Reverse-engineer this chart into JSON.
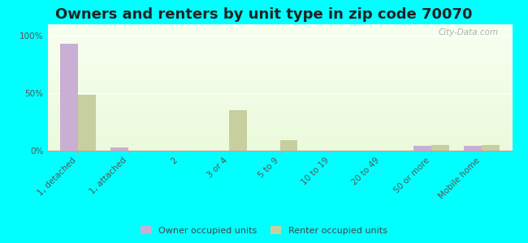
{
  "title": "Owners and renters by unit type in zip code 70070",
  "categories": [
    "1, detached",
    "1, attached",
    "2",
    "3 or 4",
    "5 to 9",
    "10 to 19",
    "20 to 49",
    "50 or more",
    "Mobile home"
  ],
  "owner_values": [
    93,
    3,
    0,
    0,
    0,
    0,
    0,
    4,
    4
  ],
  "renter_values": [
    49,
    0,
    0,
    35,
    9,
    0,
    0,
    5,
    5
  ],
  "owner_color": "#c9afd4",
  "renter_color": "#c8cf9e",
  "outer_bg": "#00ffff",
  "ylabel_ticks": [
    "0%",
    "50%",
    "100%"
  ],
  "ytick_vals": [
    0,
    50,
    100
  ],
  "ylim": [
    0,
    110
  ],
  "bar_width": 0.35,
  "legend_owner": "Owner occupied units",
  "legend_renter": "Renter occupied units",
  "title_fontsize": 13,
  "tick_fontsize": 7.5,
  "watermark": "City-Data.com"
}
